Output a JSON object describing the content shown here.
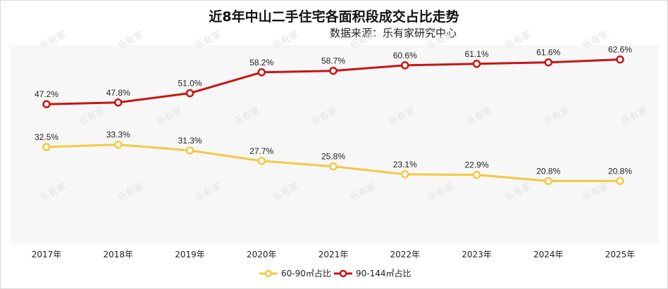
{
  "chart_data": {
    "type": "line",
    "title": "近8年中山二手住宅各面积段成交占比走势",
    "subtitle": "数据来源：乐有家研究中心",
    "watermark": "乐有家",
    "categories": [
      "2017年",
      "2018年",
      "2019年",
      "2020年",
      "2021年",
      "2022年",
      "2023年",
      "2024年",
      "2025年"
    ],
    "series": [
      {
        "name": "60-90㎡占比",
        "color": "#f5c842",
        "values": [
          32.5,
          33.3,
          31.3,
          27.7,
          25.8,
          23.1,
          22.9,
          20.8,
          20.8
        ],
        "labels": [
          "32.5%",
          "33.3%",
          "31.3%",
          "27.7%",
          "25.8%",
          "23.1%",
          "22.9%",
          "20.8%",
          "20.8%"
        ]
      },
      {
        "name": "90-144㎡占比",
        "color": "#c81414",
        "values": [
          47.2,
          47.8,
          51.0,
          58.2,
          58.7,
          60.6,
          61.1,
          61.6,
          62.6
        ],
        "labels": [
          "47.2%",
          "47.8%",
          "51.0%",
          "58.2%",
          "58.7%",
          "60.6%",
          "61.1%",
          "61.6%",
          "62.6%"
        ]
      }
    ],
    "ylim": [
      10,
      70
    ],
    "grid": false,
    "legend_position": "bottom"
  }
}
